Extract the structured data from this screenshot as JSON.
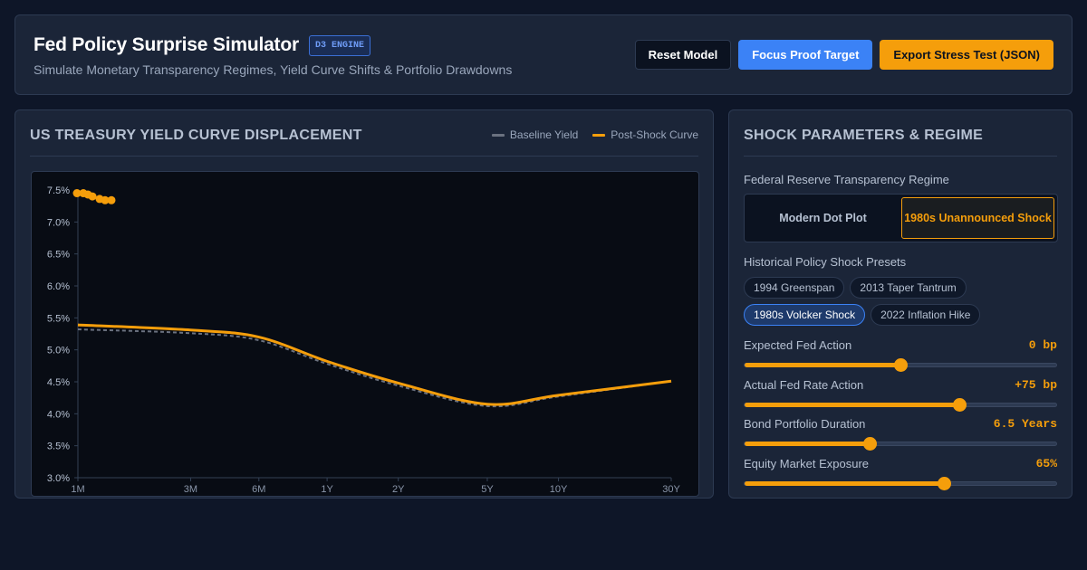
{
  "header": {
    "title": "Fed Policy Surprise Simulator",
    "badge": "D3 ENGINE",
    "subtitle": "Simulate Monetary Transparency Regimes, Yield Curve Shifts & Portfolio Drawdowns",
    "buttons": {
      "reset": "Reset Model",
      "focus": "Focus Proof Target",
      "export": "Export Stress Test (JSON)"
    }
  },
  "chart_panel": {
    "title": "US TREASURY YIELD CURVE DISPLACEMENT",
    "legend": {
      "baseline": "Baseline Yield",
      "post_shock": "Post-Shock Curve"
    }
  },
  "colors": {
    "accent": "#f59e0b",
    "primary": "#3b82f6",
    "baseline": "#6b7280"
  },
  "chart_data": {
    "type": "line",
    "title": "US TREASURY YIELD CURVE DISPLACEMENT",
    "xlabel": "",
    "ylabel": "",
    "ylim": [
      3.0,
      7.5
    ],
    "yticks": [
      "3.0%",
      "3.5%",
      "4.0%",
      "4.5%",
      "5.0%",
      "5.5%",
      "6.0%",
      "6.5%",
      "7.0%",
      "7.5%"
    ],
    "yticks_values": [
      3.0,
      3.5,
      4.0,
      4.5,
      5.0,
      5.5,
      6.0,
      6.5,
      7.0,
      7.5
    ],
    "categories": [
      "1M",
      "3M",
      "6M",
      "1Y",
      "2Y",
      "5Y",
      "10Y",
      "30Y"
    ],
    "series": [
      {
        "name": "Baseline Yield",
        "values": [
          5.32,
          5.26,
          5.15,
          4.78,
          4.44,
          4.12,
          4.27,
          4.51
        ]
      },
      {
        "name": "Post-Shock Curve",
        "values": [
          5.39,
          5.31,
          5.2,
          4.82,
          4.48,
          4.15,
          4.29,
          4.51
        ]
      }
    ],
    "overflow_markers": [
      7.45,
      7.45,
      7.43,
      7.4,
      7.36,
      7.34,
      7.34
    ],
    "grid": false,
    "legend_position": "top-right"
  },
  "params": {
    "title": "SHOCK PARAMETERS & REGIME",
    "regime_label": "Federal Reserve Transparency Regime",
    "regimes": [
      {
        "label": "Modern Dot Plot",
        "active": false
      },
      {
        "label": "1980s Unannounced Shock",
        "active": true
      }
    ],
    "presets_label": "Historical Policy Shock Presets",
    "presets": [
      {
        "label": "1994 Greenspan",
        "active": false
      },
      {
        "label": "2013 Taper Tantrum",
        "active": false
      },
      {
        "label": "1980s Volcker Shock",
        "active": true
      },
      {
        "label": "2022 Inflation Hike",
        "active": false
      }
    ],
    "sliders": [
      {
        "label": "Expected Fed Action",
        "value": "0 bp",
        "fraction": 0.5
      },
      {
        "label": "Actual Fed Rate Action",
        "value": "+75 bp",
        "fraction": 0.69
      },
      {
        "label": "Bond Portfolio Duration",
        "value": "6.5 Years",
        "fraction": 0.4
      },
      {
        "label": "Equity Market Exposure",
        "value": "65%",
        "fraction": 0.64
      }
    ]
  }
}
